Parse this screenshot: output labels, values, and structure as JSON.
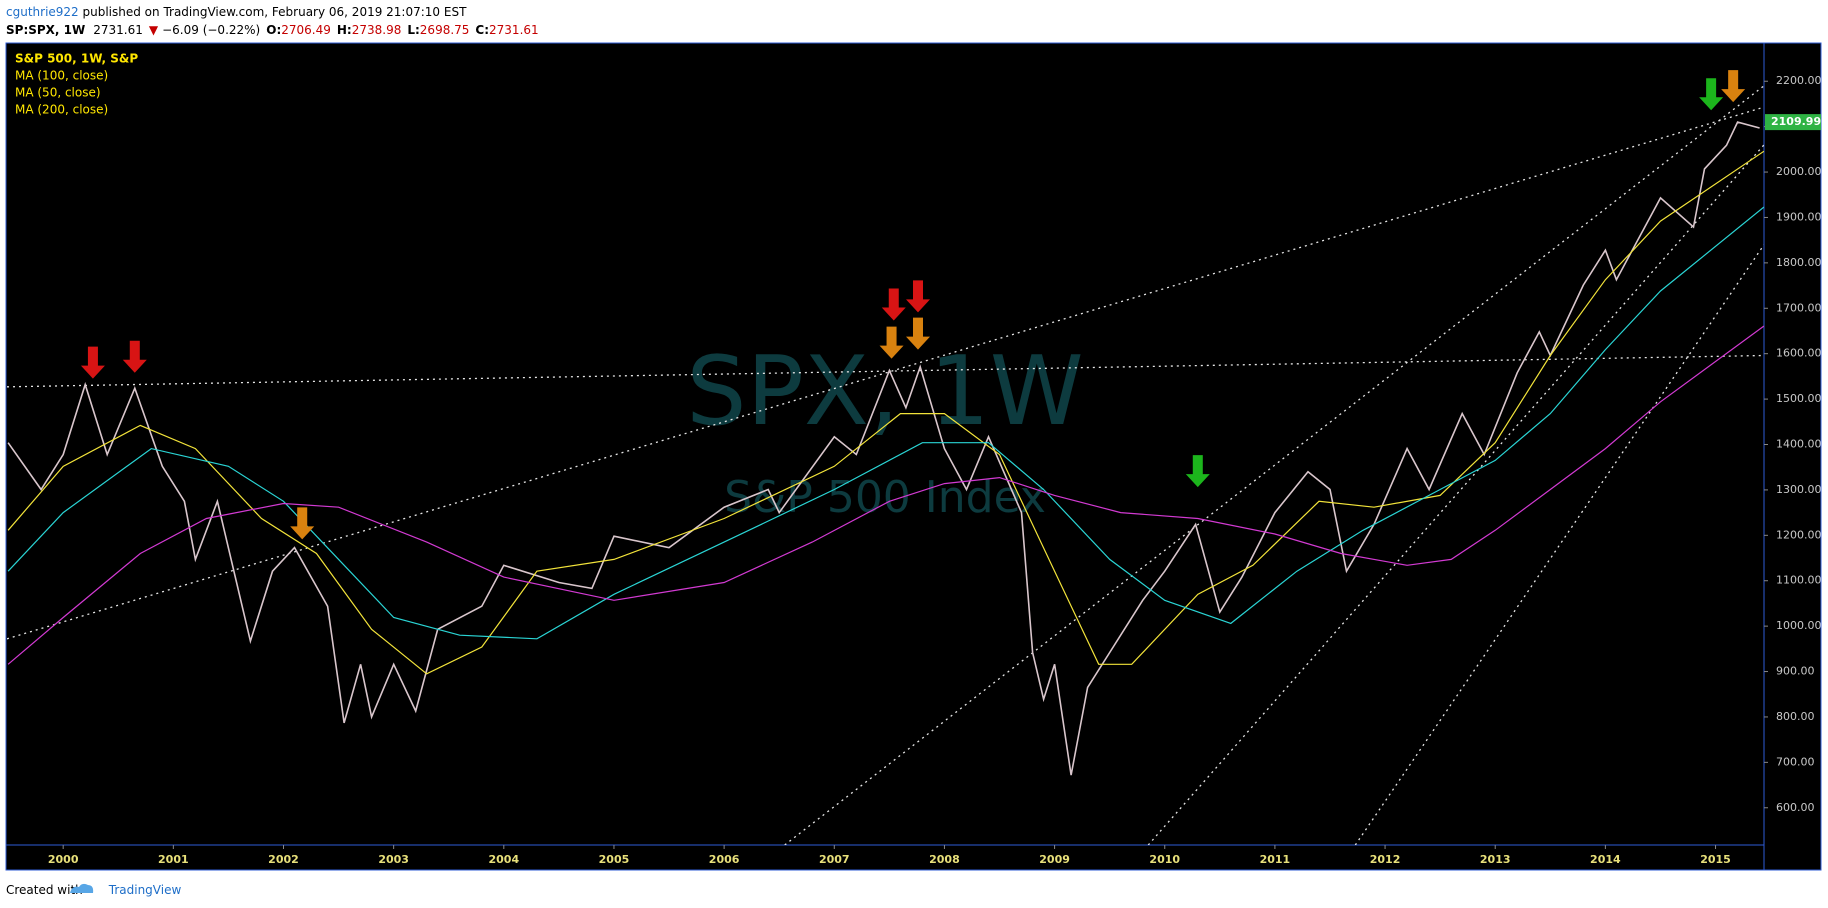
{
  "header": {
    "author": "cguthrie922",
    "published": " published on TradingView.com, February 06, 2019 21:07:10 EST",
    "symbol": "SP:SPX, 1W",
    "last": "2731.61",
    "direction": "▼",
    "change": "−6.09 (−0.22%)",
    "open_label": "O:",
    "open": "2706.49",
    "high_label": "H:",
    "high": "2738.98",
    "low_label": "L:",
    "low": "2698.75",
    "close_label": "C:",
    "close": "2731.61"
  },
  "footer": {
    "created": "Created with",
    "brand": "TradingView"
  },
  "chart_data": {
    "type": "line",
    "watermark": "SPX, 1W",
    "watermark_subtitle": "S&P 500 Index",
    "legend_text_color": "#ffe600",
    "xlim": [
      1999.49,
      2015.44
    ],
    "xticks": [
      2000,
      2001,
      2002,
      2003,
      2004,
      2005,
      2006,
      2007,
      2008,
      2009,
      2010,
      2011,
      2012,
      2013,
      2014,
      2015
    ],
    "ylim": [
      518,
      2282
    ],
    "yticks": [
      {
        "value": 600,
        "label": "600.00"
      },
      {
        "value": 700,
        "label": "700.00"
      },
      {
        "value": 800,
        "label": "800.00"
      },
      {
        "value": 900,
        "label": "900.00"
      },
      {
        "value": 1000,
        "label": "1000.00"
      },
      {
        "value": 1100,
        "label": "1100.00"
      },
      {
        "value": 1200,
        "label": "1200.00"
      },
      {
        "value": 1300,
        "label": "1300.00"
      },
      {
        "value": 1400,
        "label": "1400.00"
      },
      {
        "value": 1500,
        "label": "1500.00"
      },
      {
        "value": 1600,
        "label": "1600.00"
      },
      {
        "value": 1700,
        "label": "1700.00"
      },
      {
        "value": 1800,
        "label": "1800.00"
      },
      {
        "value": 1900,
        "label": "1900.00"
      },
      {
        "value": 2000,
        "label": "2000.00"
      },
      {
        "value": 2100,
        "label": "2100.00"
      },
      {
        "value": 2200,
        "label": "2200.00"
      }
    ],
    "last_price": 2109.99,
    "last_price_color": "#2fb344",
    "series": [
      {
        "name": "S&P 500, 1W, S&P",
        "color": "#d9c6cc",
        "x": [
          1999.5,
          1999.8,
          2000.0,
          2000.2,
          2000.4,
          2000.65,
          2000.9,
          2001.1,
          2001.2,
          2001.4,
          2001.7,
          2001.9,
          2002.1,
          2002.4,
          2002.55,
          2002.7,
          2002.8,
          2003.0,
          2003.2,
          2003.4,
          2003.8,
          2004.0,
          2004.5,
          2004.8,
          2005.0,
          2005.5,
          2006.0,
          2006.4,
          2006.5,
          2007.0,
          2007.2,
          2007.5,
          2007.65,
          2007.78,
          2008.0,
          2008.2,
          2008.4,
          2008.7,
          2008.8,
          2008.9,
          2009.0,
          2009.15,
          2009.3,
          2009.5,
          2009.8,
          2010.0,
          2010.28,
          2010.5,
          2010.7,
          2011.0,
          2011.3,
          2011.5,
          2011.65,
          2011.9,
          2012.2,
          2012.4,
          2012.7,
          2012.9,
          2013.2,
          2013.4,
          2013.5,
          2013.8,
          2014.0,
          2014.1,
          2014.5,
          2014.8,
          2014.9,
          2015.1,
          2015.2,
          2015.4
        ],
        "values": [
          1404,
          1301,
          1378,
          1532,
          1378,
          1524,
          1352,
          1275,
          1147,
          1275,
          967,
          1121,
          1173,
          1044,
          787,
          916,
          800,
          916,
          813,
          993,
          1044,
          1134,
          1096,
          1083,
          1198,
          1173,
          1262,
          1301,
          1250,
          1417,
          1378,
          1563,
          1481,
          1571,
          1391,
          1301,
          1417,
          1250,
          942,
          839,
          916,
          672,
          865,
          942,
          1057,
          1121,
          1224,
          1031,
          1108,
          1250,
          1340,
          1301,
          1121,
          1224,
          1391,
          1301,
          1468,
          1378,
          1558,
          1648,
          1596,
          1751,
          1828,
          1763,
          1943,
          1879,
          2007,
          2059,
          2110,
          2097
        ]
      },
      {
        "name": "MA (100, close)",
        "color": "#f2e33a",
        "x": [
          1999.5,
          2000.0,
          2000.7,
          2001.2,
          2001.8,
          2002.3,
          2002.8,
          2003.3,
          2003.8,
          2004.3,
          2005.0,
          2006.0,
          2007.0,
          2007.6,
          2008.0,
          2008.5,
          2009.0,
          2009.4,
          2009.7,
          2010.3,
          2010.8,
          2011.4,
          2011.9,
          2012.5,
          2013.0,
          2013.5,
          2014.0,
          2014.5,
          2015.44
        ],
        "values": [
          1211,
          1352,
          1442,
          1391,
          1237,
          1160,
          993,
          895,
          954,
          1121,
          1147,
          1237,
          1352,
          1468,
          1468,
          1378,
          1121,
          916,
          916,
          1070,
          1134,
          1275,
          1262,
          1288,
          1404,
          1596,
          1763,
          1892,
          2046
        ]
      },
      {
        "name": "MA (50, close)",
        "color": "#2ad4d4",
        "x": [
          1999.5,
          2000.0,
          2000.8,
          2001.5,
          2002.0,
          2002.5,
          2003.0,
          2003.6,
          2004.3,
          2005.0,
          2006.0,
          2007.0,
          2007.8,
          2008.4,
          2008.9,
          2009.5,
          2010.0,
          2010.6,
          2011.2,
          2011.8,
          2012.5,
          2013.0,
          2013.5,
          2014.0,
          2014.5,
          2015.44
        ],
        "values": [
          1121,
          1250,
          1391,
          1352,
          1275,
          1147,
          1019,
          980,
          972,
          1070,
          1185,
          1301,
          1404,
          1404,
          1301,
          1147,
          1057,
          1006,
          1121,
          1211,
          1301,
          1365,
          1468,
          1609,
          1738,
          1923
        ]
      },
      {
        "name": "MA (200, close)",
        "color": "#d23ad2",
        "x": [
          1999.5,
          2000.0,
          2000.7,
          2001.3,
          2002.0,
          2002.5,
          2003.3,
          2004.0,
          2005.0,
          2006.0,
          2006.8,
          2007.5,
          2008.0,
          2008.5,
          2009.0,
          2009.6,
          2010.3,
          2011.0,
          2011.6,
          2012.2,
          2012.6,
          2013.0,
          2013.5,
          2014.0,
          2014.5,
          2015.44
        ],
        "values": [
          916,
          1019,
          1160,
          1237,
          1270,
          1262,
          1185,
          1108,
          1057,
          1096,
          1185,
          1275,
          1314,
          1327,
          1288,
          1250,
          1237,
          1203,
          1160,
          1134,
          1147,
          1211,
          1301,
          1391,
          1494,
          1661
        ]
      }
    ],
    "trendline_color": "#e6e6e6",
    "trendlines": [
      {
        "x": [
          1999.49,
          2015.44
        ],
        "y": [
          1527,
          1596
        ]
      },
      {
        "x": [
          1999.49,
          2015.44
        ],
        "y": [
          972,
          2143
        ]
      },
      {
        "x": [
          2006.55,
          2015.44
        ],
        "y": [
          518,
          2190
        ]
      },
      {
        "x": [
          2009.85,
          2015.44
        ],
        "y": [
          518,
          2060
        ]
      },
      {
        "x": [
          2011.73,
          2015.44
        ],
        "y": [
          518,
          1840
        ]
      }
    ],
    "arrows": [
      {
        "x": 2000.27,
        "y": 1545,
        "color": "#d81414"
      },
      {
        "x": 2000.65,
        "y": 1558,
        "color": "#d81414"
      },
      {
        "x": 2002.17,
        "y": 1191,
        "color": "#d9820f"
      },
      {
        "x": 2007.52,
        "y": 1589,
        "color": "#d9820f"
      },
      {
        "x": 2007.76,
        "y": 1609,
        "color": "#d9820f"
      },
      {
        "x": 2007.54,
        "y": 1673,
        "color": "#d81414"
      },
      {
        "x": 2007.76,
        "y": 1691,
        "color": "#d81414"
      },
      {
        "x": 2010.3,
        "y": 1306,
        "color": "#1cb51c"
      },
      {
        "x": 2014.96,
        "y": 2136,
        "color": "#1cb51c"
      },
      {
        "x": 2015.16,
        "y": 2154,
        "color": "#d9820f"
      }
    ]
  }
}
